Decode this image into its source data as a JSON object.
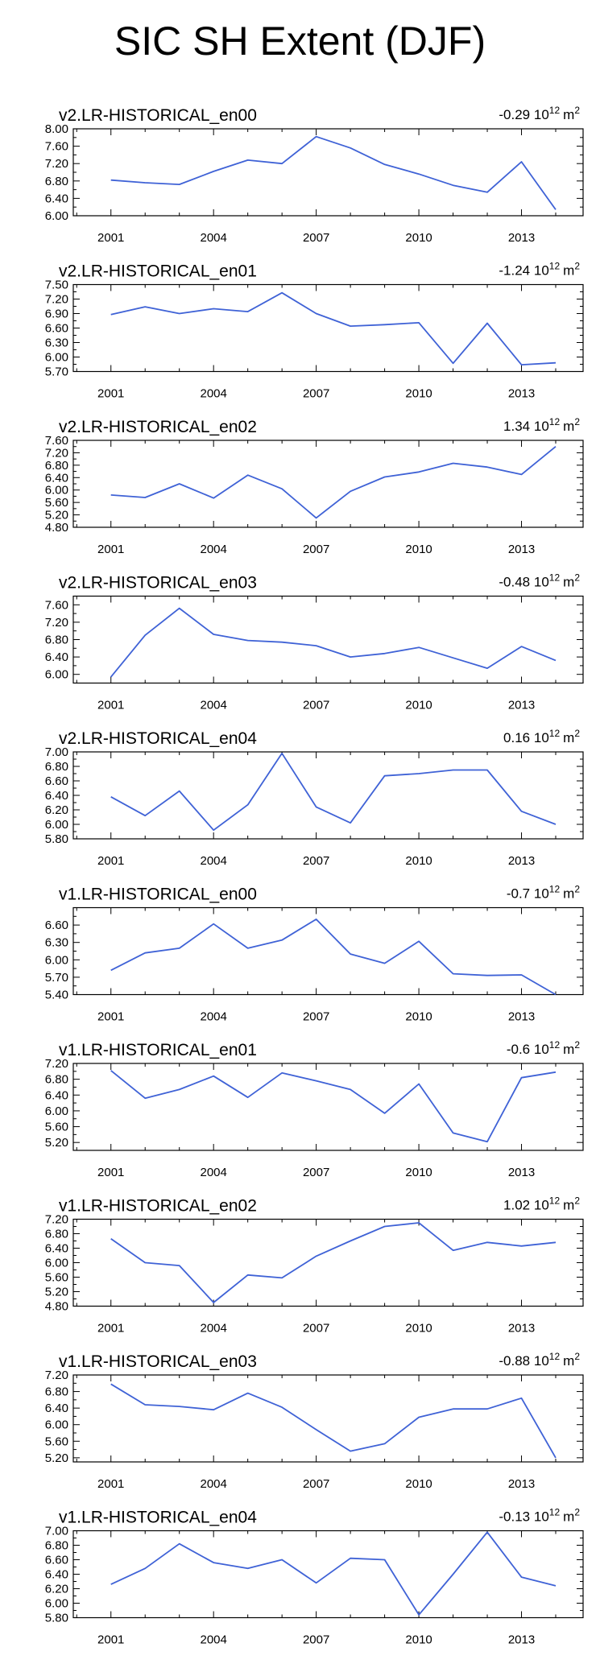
{
  "title": "SIC SH Extent (DJF)",
  "colors": {
    "line": "#3f62d6",
    "axis": "#000000"
  },
  "chart_data": [
    {
      "type": "line",
      "title": "v2.LR-HISTORICAL_en00",
      "trend": "-0.29",
      "unit_base": "10",
      "unit_exp": "12",
      "unit_suffix": "m",
      "unit_suffix_exp": "2",
      "x": [
        2001,
        2002,
        2003,
        2004,
        2005,
        2006,
        2007,
        2008,
        2009,
        2010,
        2011,
        2012,
        2013,
        2014
      ],
      "y": [
        6.82,
        6.76,
        6.72,
        7.02,
        7.28,
        7.2,
        7.82,
        7.56,
        7.18,
        6.96,
        6.7,
        6.54,
        7.24,
        6.14
      ],
      "xlim": [
        1999.9,
        2014.8
      ],
      "ylim": [
        6.0,
        8.0
      ],
      "yticks": [
        "8.00",
        "7.60",
        "7.20",
        "6.80",
        "6.40",
        "6.00"
      ],
      "xticks": [
        "2001",
        "2004",
        "2007",
        "2010",
        "2013"
      ]
    },
    {
      "type": "line",
      "title": "v2.LR-HISTORICAL_en01",
      "trend": "-1.24",
      "unit_base": "10",
      "unit_exp": "12",
      "unit_suffix": "m",
      "unit_suffix_exp": "2",
      "x": [
        2001,
        2002,
        2003,
        2004,
        2005,
        2006,
        2007,
        2008,
        2009,
        2010,
        2011,
        2012,
        2013,
        2014
      ],
      "y": [
        6.88,
        7.04,
        6.9,
        7.0,
        6.94,
        7.33,
        6.9,
        6.64,
        6.67,
        6.71,
        5.87,
        6.7,
        5.84,
        5.88
      ],
      "xlim": [
        1999.9,
        2014.8
      ],
      "ylim": [
        5.7,
        7.5
      ],
      "yticks": [
        "7.50",
        "7.20",
        "6.90",
        "6.60",
        "6.30",
        "6.00",
        "5.70"
      ],
      "xticks": [
        "2001",
        "2004",
        "2007",
        "2010",
        "2013"
      ]
    },
    {
      "type": "line",
      "title": "v2.LR-HISTORICAL_en02",
      "trend": "1.34",
      "unit_base": "10",
      "unit_exp": "12",
      "unit_suffix": "m",
      "unit_suffix_exp": "2",
      "x": [
        2001,
        2002,
        2003,
        2004,
        2005,
        2006,
        2007,
        2008,
        2009,
        2010,
        2011,
        2012,
        2013,
        2014
      ],
      "y": [
        5.84,
        5.76,
        6.2,
        5.74,
        6.48,
        6.04,
        5.1,
        5.96,
        6.42,
        6.58,
        6.86,
        6.74,
        6.5,
        7.4
      ],
      "xlim": [
        1999.9,
        2014.8
      ],
      "ylim": [
        4.8,
        7.6
      ],
      "yticks": [
        "7.60",
        "7.20",
        "6.80",
        "6.40",
        "6.00",
        "5.60",
        "5.20",
        "4.80"
      ],
      "xticks": [
        "2001",
        "2004",
        "2007",
        "2010",
        "2013"
      ]
    },
    {
      "type": "line",
      "title": "v2.LR-HISTORICAL_en03",
      "trend": "-0.48",
      "unit_base": "10",
      "unit_exp": "12",
      "unit_suffix": "m",
      "unit_suffix_exp": "2",
      "x": [
        2001,
        2002,
        2003,
        2004,
        2005,
        2006,
        2007,
        2008,
        2009,
        2010,
        2011,
        2012,
        2013,
        2014
      ],
      "y": [
        5.94,
        6.9,
        7.52,
        6.92,
        6.78,
        6.74,
        6.66,
        6.4,
        6.48,
        6.62,
        6.38,
        6.14,
        6.64,
        6.32
      ],
      "xlim": [
        1999.9,
        2014.8
      ],
      "ylim": [
        5.8,
        7.8
      ],
      "yticks": [
        "7.60",
        "7.20",
        "6.80",
        "6.40",
        "6.00"
      ],
      "xticks": [
        "2001",
        "2004",
        "2007",
        "2010",
        "2013"
      ]
    },
    {
      "type": "line",
      "title": "v2.LR-HISTORICAL_en04",
      "trend": "0.16",
      "unit_base": "10",
      "unit_exp": "12",
      "unit_suffix": "m",
      "unit_suffix_exp": "2",
      "x": [
        2001,
        2002,
        2003,
        2004,
        2005,
        2006,
        2007,
        2008,
        2009,
        2010,
        2011,
        2012,
        2013,
        2014
      ],
      "y": [
        6.38,
        6.12,
        6.46,
        5.92,
        6.27,
        6.98,
        6.24,
        6.02,
        6.67,
        6.7,
        6.75,
        6.75,
        6.18,
        6.0
      ],
      "xlim": [
        1999.9,
        2014.8
      ],
      "ylim": [
        5.8,
        7.0
      ],
      "yticks": [
        "7.00",
        "6.80",
        "6.60",
        "6.40",
        "6.20",
        "6.00",
        "5.80"
      ],
      "xticks": [
        "2001",
        "2004",
        "2007",
        "2010",
        "2013"
      ]
    },
    {
      "type": "line",
      "title": "v1.LR-HISTORICAL_en00",
      "trend": "-0.7",
      "unit_base": "10",
      "unit_exp": "12",
      "unit_suffix": "m",
      "unit_suffix_exp": "2",
      "x": [
        2001,
        2002,
        2003,
        2004,
        2005,
        2006,
        2007,
        2008,
        2009,
        2010,
        2011,
        2012,
        2013,
        2014
      ],
      "y": [
        5.82,
        6.12,
        6.2,
        6.62,
        6.2,
        6.34,
        6.7,
        6.1,
        5.94,
        6.32,
        5.76,
        5.73,
        5.74,
        5.4
      ],
      "xlim": [
        1999.9,
        2014.8
      ],
      "ylim": [
        5.4,
        6.9
      ],
      "yticks": [
        "6.60",
        "6.30",
        "6.00",
        "5.70",
        "5.40"
      ],
      "xticks": [
        "2001",
        "2004",
        "2007",
        "2010",
        "2013"
      ]
    },
    {
      "type": "line",
      "title": "v1.LR-HISTORICAL_en01",
      "trend": "-0.6",
      "unit_base": "10",
      "unit_exp": "12",
      "unit_suffix": "m",
      "unit_suffix_exp": "2",
      "x": [
        2001,
        2002,
        2003,
        2004,
        2005,
        2006,
        2007,
        2008,
        2009,
        2010,
        2011,
        2012,
        2013,
        2014
      ],
      "y": [
        7.02,
        6.32,
        6.54,
        6.88,
        6.34,
        6.96,
        6.76,
        6.54,
        5.94,
        6.68,
        5.44,
        5.22,
        6.84,
        6.98
      ],
      "xlim": [
        1999.9,
        2014.8
      ],
      "ylim": [
        5.0,
        7.2
      ],
      "yticks": [
        "7.20",
        "6.80",
        "6.40",
        "6.00",
        "5.60",
        "5.20"
      ],
      "xticks": [
        "2001",
        "2004",
        "2007",
        "2010",
        "2013"
      ]
    },
    {
      "type": "line",
      "title": "v1.LR-HISTORICAL_en02",
      "trend": "1.02",
      "unit_base": "10",
      "unit_exp": "12",
      "unit_suffix": "m",
      "unit_suffix_exp": "2",
      "x": [
        2001,
        2002,
        2003,
        2004,
        2005,
        2006,
        2007,
        2008,
        2009,
        2010,
        2011,
        2012,
        2013,
        2014
      ],
      "y": [
        6.66,
        6.0,
        5.92,
        4.9,
        5.66,
        5.58,
        6.18,
        6.6,
        7.0,
        7.1,
        6.34,
        6.56,
        6.46,
        6.56
      ],
      "xlim": [
        1999.9,
        2014.8
      ],
      "ylim": [
        4.8,
        7.2
      ],
      "yticks": [
        "7.20",
        "6.80",
        "6.40",
        "6.00",
        "5.60",
        "5.20",
        "4.80"
      ],
      "xticks": [
        "2001",
        "2004",
        "2007",
        "2010",
        "2013"
      ]
    },
    {
      "type": "line",
      "title": "v1.LR-HISTORICAL_en03",
      "trend": "-0.88",
      "unit_base": "10",
      "unit_exp": "12",
      "unit_suffix": "m",
      "unit_suffix_exp": "2",
      "x": [
        2001,
        2002,
        2003,
        2004,
        2005,
        2006,
        2007,
        2008,
        2009,
        2010,
        2011,
        2012,
        2013,
        2014
      ],
      "y": [
        6.98,
        6.48,
        6.44,
        6.36,
        6.76,
        6.42,
        5.88,
        5.36,
        5.54,
        6.18,
        6.38,
        6.38,
        6.64,
        5.2
      ],
      "xlim": [
        1999.9,
        2014.8
      ],
      "ylim": [
        5.1,
        7.2
      ],
      "yticks": [
        "7.20",
        "6.80",
        "6.40",
        "6.00",
        "5.60",
        "5.20"
      ],
      "xticks": [
        "2001",
        "2004",
        "2007",
        "2010",
        "2013"
      ]
    },
    {
      "type": "line",
      "title": "v1.LR-HISTORICAL_en04",
      "trend": "-0.13",
      "unit_base": "10",
      "unit_exp": "12",
      "unit_suffix": "m",
      "unit_suffix_exp": "2",
      "x": [
        2001,
        2002,
        2003,
        2004,
        2005,
        2006,
        2007,
        2008,
        2009,
        2010,
        2011,
        2012,
        2013,
        2014
      ],
      "y": [
        6.26,
        6.48,
        6.82,
        6.56,
        6.48,
        6.6,
        6.28,
        6.62,
        6.6,
        5.84,
        6.4,
        6.98,
        6.36,
        6.24
      ],
      "xlim": [
        1999.9,
        2014.8
      ],
      "ylim": [
        5.8,
        7.0
      ],
      "yticks": [
        "7.00",
        "6.80",
        "6.60",
        "6.40",
        "6.20",
        "6.00",
        "5.80"
      ],
      "xticks": [
        "2001",
        "2004",
        "2007",
        "2010",
        "2013"
      ]
    }
  ]
}
